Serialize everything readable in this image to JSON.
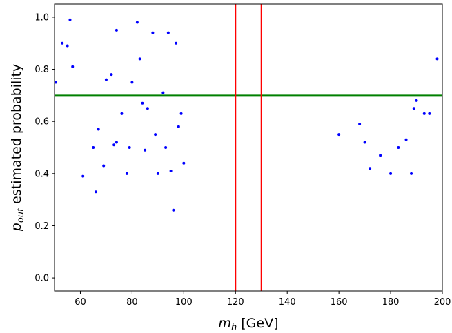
{
  "chart_data": {
    "type": "scatter",
    "title": "",
    "xlabel_main": "m",
    "xlabel_sub": "h",
    "xlabel_unit": " [GeV]",
    "ylabel_main": "p",
    "ylabel_sub": "out",
    "ylabel_rest": " estimated probability",
    "xlim": [
      50,
      200
    ],
    "ylim": [
      -0.05,
      1.05
    ],
    "xticks": [
      60,
      80,
      100,
      120,
      140,
      160,
      180,
      200
    ],
    "xticklabels": [
      "60",
      "80",
      "100",
      "120",
      "140",
      "160",
      "180",
      "200"
    ],
    "yticks": [
      0.0,
      0.2,
      0.4,
      0.6,
      0.8,
      1.0
    ],
    "yticklabels": [
      "0.0",
      "0.2",
      "0.4",
      "0.6",
      "0.8",
      "1.0"
    ],
    "grid": false,
    "colors": {
      "points": "#0000ff",
      "vlines": "#ff0000",
      "hline": "#008000"
    },
    "vertical_lines": [
      120,
      130
    ],
    "horizontal_line": 0.7,
    "series": [
      {
        "points": [
          [
            50.5,
            0.75
          ],
          [
            53,
            0.9
          ],
          [
            55,
            0.89
          ],
          [
            56,
            0.99
          ],
          [
            57,
            0.81
          ],
          [
            61,
            0.39
          ],
          [
            65,
            0.5
          ],
          [
            67,
            0.57
          ],
          [
            69,
            0.43
          ],
          [
            70,
            0.76
          ],
          [
            72,
            0.78
          ],
          [
            73,
            0.51
          ],
          [
            74,
            0.95
          ],
          [
            74,
            0.52
          ],
          [
            76,
            0.63
          ],
          [
            79,
            0.5
          ],
          [
            80,
            0.75
          ],
          [
            82,
            0.98
          ],
          [
            83,
            0.84
          ],
          [
            84,
            0.67
          ],
          [
            85,
            0.49
          ],
          [
            86,
            0.65
          ],
          [
            88,
            0.94
          ],
          [
            90,
            0.4
          ],
          [
            92,
            0.71
          ],
          [
            94,
            0.94
          ],
          [
            95,
            0.41
          ],
          [
            96,
            0.26
          ],
          [
            98,
            0.58
          ],
          [
            99,
            0.63
          ],
          [
            97,
            0.9
          ],
          [
            93,
            0.5
          ],
          [
            89,
            0.55
          ],
          [
            78,
            0.4
          ],
          [
            66,
            0.33
          ],
          [
            100,
            0.44
          ],
          [
            180,
            0.4
          ],
          [
            188,
            0.4
          ],
          [
            189,
            0.65
          ],
          [
            190,
            0.68
          ],
          [
            186,
            0.53
          ],
          [
            193,
            0.63
          ],
          [
            195,
            0.63
          ],
          [
            198,
            0.84
          ],
          [
            183,
            0.5
          ],
          [
            170,
            0.52
          ],
          [
            176,
            0.47
          ],
          [
            168,
            0.59
          ],
          [
            172,
            0.42
          ],
          [
            160,
            0.55
          ]
        ]
      }
    ]
  }
}
